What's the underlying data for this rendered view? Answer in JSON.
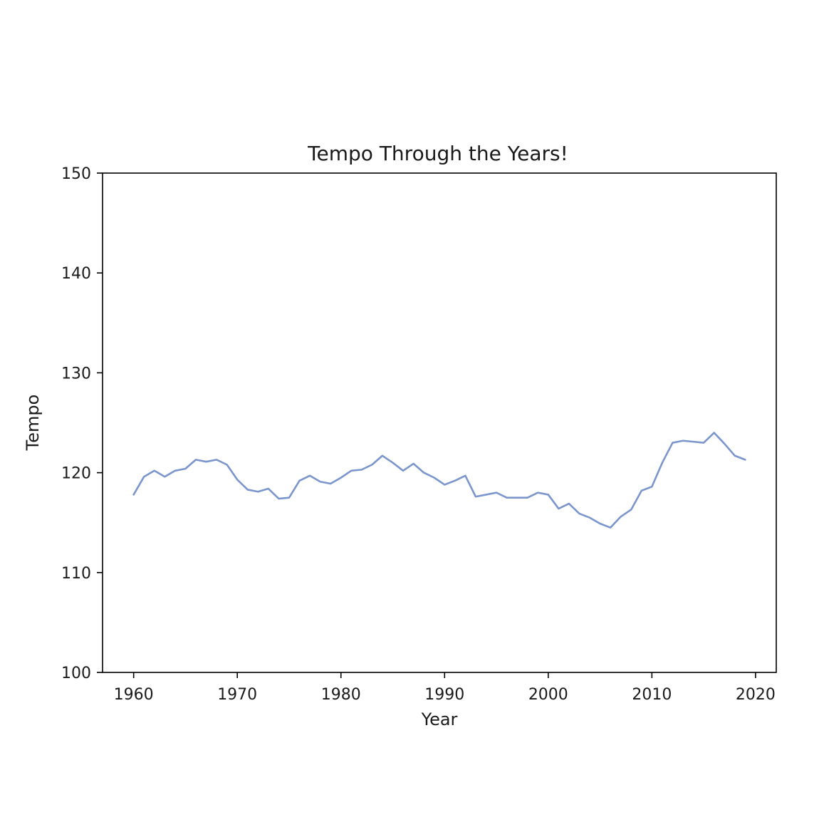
{
  "chart_data": {
    "type": "line",
    "title": "Tempo Through the Years!",
    "xlabel": "Year",
    "ylabel": "Tempo",
    "xlim": [
      1957,
      2022
    ],
    "ylim": [
      100,
      150
    ],
    "xticks": [
      1960,
      1970,
      1980,
      1990,
      2000,
      2010,
      2020
    ],
    "yticks": [
      100,
      110,
      120,
      130,
      140,
      150
    ],
    "grid": false,
    "line_color": "#7b96cc",
    "series": [
      {
        "x": [
          1960,
          1961,
          1962,
          1963,
          1964,
          1965,
          1966,
          1967,
          1968,
          1969,
          1970,
          1971,
          1972,
          1973,
          1974,
          1975,
          1976,
          1977,
          1978,
          1979,
          1980,
          1981,
          1982,
          1983,
          1984,
          1985,
          1986,
          1987,
          1988,
          1989,
          1990,
          1991,
          1992,
          1993,
          1994,
          1995,
          1996,
          1997,
          1998,
          1999,
          2000,
          2001,
          2002,
          2003,
          2004,
          2005,
          2006,
          2007,
          2008,
          2009,
          2010,
          2011,
          2012,
          2013,
          2014,
          2015,
          2016,
          2017,
          2018,
          2019
        ],
        "y": [
          117.8,
          119.6,
          120.2,
          119.6,
          120.2,
          120.4,
          121.3,
          121.1,
          121.3,
          120.8,
          119.3,
          118.3,
          118.1,
          118.4,
          117.4,
          117.5,
          119.2,
          119.7,
          119.1,
          118.9,
          119.5,
          120.2,
          120.3,
          120.8,
          121.7,
          121.0,
          120.2,
          120.9,
          120.0,
          119.5,
          118.8,
          119.2,
          119.7,
          117.6,
          117.8,
          118.0,
          117.5,
          117.5,
          117.5,
          118.0,
          117.8,
          116.4,
          116.9,
          115.9,
          115.5,
          114.9,
          114.5,
          115.6,
          116.3,
          118.2,
          118.6,
          121.0,
          123.0,
          123.2,
          123.1,
          123.0,
          124.0,
          122.9,
          121.7,
          121.3
        ]
      }
    ]
  }
}
